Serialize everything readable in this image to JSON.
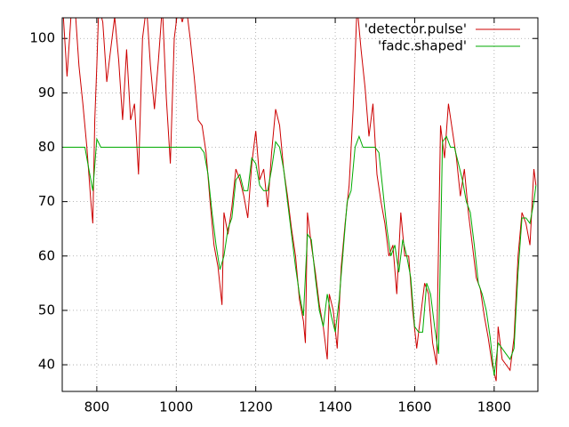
{
  "chart_data": {
    "type": "line",
    "series": [
      {
        "name": "'detector.pulse'",
        "color": "#cc0000",
        "x": [
          715,
          725,
          735,
          745,
          755,
          765,
          775,
          785,
          790,
          795,
          800,
          805,
          815,
          825,
          835,
          845,
          855,
          865,
          875,
          885,
          895,
          905,
          915,
          925,
          935,
          945,
          955,
          965,
          975,
          985,
          995,
          1005,
          1015,
          1025,
          1035,
          1045,
          1055,
          1065,
          1075,
          1085,
          1095,
          1105,
          1115,
          1120,
          1130,
          1140,
          1150,
          1160,
          1170,
          1180,
          1190,
          1200,
          1210,
          1220,
          1230,
          1240,
          1250,
          1260,
          1270,
          1280,
          1290,
          1300,
          1310,
          1320,
          1325,
          1330,
          1340,
          1350,
          1360,
          1370,
          1380,
          1385,
          1395,
          1405,
          1415,
          1425,
          1435,
          1445,
          1455,
          1465,
          1475,
          1485,
          1495,
          1505,
          1515,
          1525,
          1535,
          1545,
          1555,
          1565,
          1575,
          1585,
          1595,
          1605,
          1615,
          1625,
          1635,
          1645,
          1655,
          1665,
          1675,
          1685,
          1695,
          1705,
          1715,
          1725,
          1735,
          1745,
          1755,
          1765,
          1775,
          1785,
          1795,
          1805,
          1810,
          1820,
          1830,
          1840,
          1850,
          1860,
          1870,
          1880,
          1890,
          1900,
          1905
        ],
        "values": [
          105,
          93,
          104,
          106,
          95,
          88,
          80,
          70,
          66,
          85,
          95,
          106,
          103,
          92,
          98,
          104,
          96,
          85,
          98,
          85,
          88,
          75,
          100,
          106,
          95,
          87,
          96,
          106,
          89,
          77,
          100,
          106,
          103,
          106,
          100,
          93,
          85,
          84,
          79,
          70,
          62,
          58,
          51,
          68,
          64,
          69,
          76,
          74,
          71,
          67,
          77,
          83,
          74,
          76,
          69,
          79,
          87,
          84,
          76,
          71,
          65,
          60,
          52,
          48,
          44,
          68,
          62,
          57,
          51,
          47,
          41,
          53,
          50,
          43,
          58,
          66,
          73,
          87,
          106,
          98,
          91,
          82,
          88,
          75,
          70,
          66,
          60,
          62,
          53,
          68,
          60,
          60,
          50,
          43,
          49,
          55,
          53,
          44,
          40,
          84,
          78,
          88,
          83,
          78,
          71,
          76,
          68,
          62,
          56,
          54,
          49,
          45,
          40,
          37,
          47,
          41,
          40,
          39,
          45,
          60,
          68,
          66,
          62,
          76,
          73
        ]
      },
      {
        "name": "'fadc.shaped'",
        "color": "#00aa00",
        "x": [
          715,
          730,
          750,
          770,
          780,
          790,
          800,
          810,
          830,
          900,
          1000,
          1060,
          1070,
          1080,
          1090,
          1100,
          1110,
          1120,
          1130,
          1140,
          1150,
          1160,
          1170,
          1180,
          1190,
          1200,
          1210,
          1220,
          1230,
          1240,
          1250,
          1260,
          1270,
          1280,
          1290,
          1300,
          1310,
          1320,
          1330,
          1340,
          1350,
          1360,
          1370,
          1380,
          1390,
          1400,
          1410,
          1420,
          1430,
          1440,
          1450,
          1460,
          1470,
          1480,
          1490,
          1500,
          1510,
          1520,
          1530,
          1540,
          1550,
          1560,
          1570,
          1580,
          1590,
          1600,
          1610,
          1620,
          1630,
          1640,
          1650,
          1660,
          1670,
          1680,
          1690,
          1700,
          1710,
          1720,
          1730,
          1740,
          1750,
          1760,
          1770,
          1780,
          1790,
          1800,
          1810,
          1820,
          1830,
          1840,
          1850,
          1860,
          1870,
          1880,
          1890,
          1900,
          1905
        ],
        "values": [
          80,
          80,
          80,
          80,
          76,
          72,
          81.5,
          80,
          80,
          80,
          80,
          80,
          79,
          75,
          68,
          62,
          57.5,
          60,
          65,
          67,
          74,
          75,
          72,
          72,
          78,
          77,
          73,
          72,
          72,
          76,
          81,
          80,
          76,
          70,
          64,
          58,
          53,
          49,
          64,
          63,
          56,
          50,
          47,
          53,
          49,
          46,
          52,
          61,
          70,
          72,
          80,
          82,
          80,
          80,
          80,
          80,
          79,
          72,
          65,
          60,
          62,
          57,
          63,
          60,
          56,
          47,
          46,
          46,
          55,
          53,
          47,
          42,
          81,
          82,
          80,
          80,
          77,
          74,
          70,
          68,
          62,
          55,
          53,
          50,
          45,
          38,
          44,
          43,
          42,
          41,
          43,
          57,
          67,
          67,
          66,
          70,
          73
        ]
      }
    ],
    "xlim": [
      713,
      1910
    ],
    "ylim": [
      35.1,
      103.8
    ],
    "xticks": [
      800,
      1000,
      1200,
      1400,
      1600,
      1800
    ],
    "yticks": [
      40,
      50,
      60,
      70,
      80,
      90,
      100
    ],
    "grid": true,
    "legend": "top-right"
  }
}
